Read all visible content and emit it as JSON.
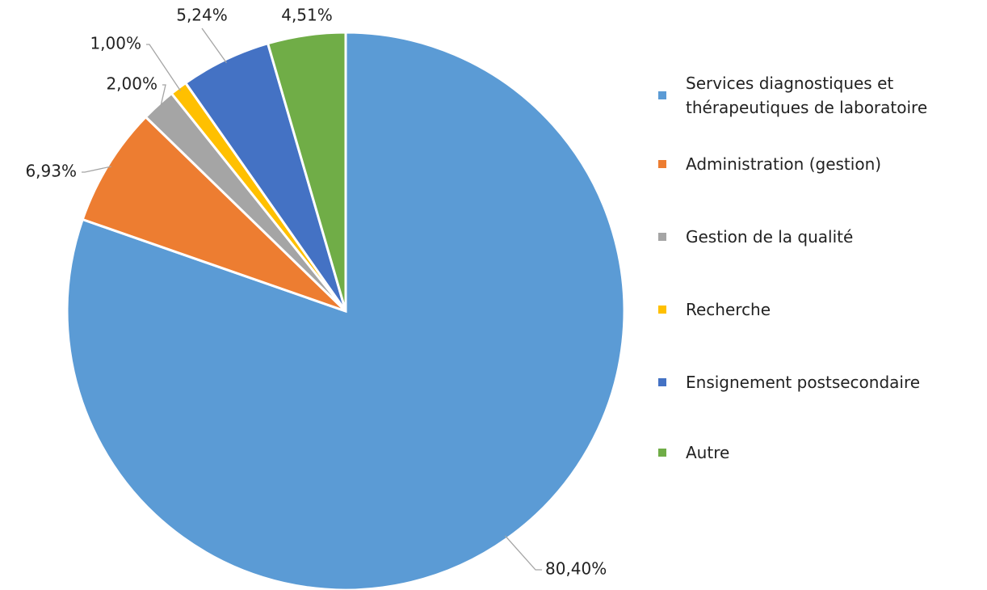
{
  "chart_data": {
    "type": "pie",
    "categories": [
      "Services diagnostiques et thérapeutiques de laboratoire",
      "Administration (gestion)",
      "Gestion de la qualité",
      "Recherche",
      "Ensignement postsecondaire",
      "Autre"
    ],
    "values": [
      80.4,
      6.93,
      2.0,
      1.0,
      5.24,
      4.51
    ],
    "value_labels": [
      "80,40%",
      "6,93%",
      "2,00%",
      "1,00%",
      "5,24%",
      "4,51%"
    ],
    "colors": [
      "#5b9bd5",
      "#ed7d31",
      "#a5a5a5",
      "#ffc000",
      "#4472c4",
      "#70ad47"
    ],
    "legend": "right"
  }
}
